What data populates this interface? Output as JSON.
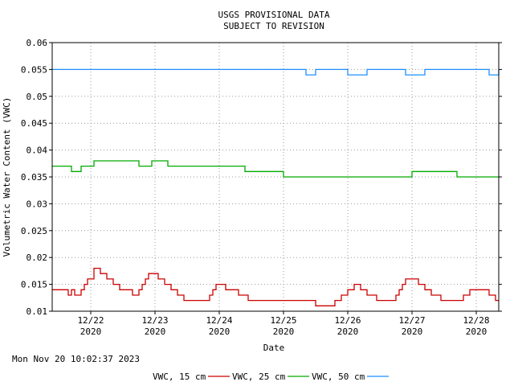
{
  "chart_data": {
    "type": "line",
    "title_line1": "USGS PROVISIONAL DATA",
    "title_line2": "SUBJECT TO REVISION",
    "xlabel": "Date",
    "ylabel": "Volumetric Water Content (VWC)",
    "timestamp": "Mon Nov 20 10:02:37 2023",
    "ylim": [
      0.01,
      0.06
    ],
    "y_ticks": [
      "0.01",
      "0.015",
      "0.02",
      "0.025",
      "0.03",
      "0.035",
      "0.04",
      "0.045",
      "0.05",
      "0.055",
      "0.06"
    ],
    "y_tick_values": [
      0.01,
      0.015,
      0.02,
      0.025,
      0.03,
      0.035,
      0.04,
      0.045,
      0.05,
      0.055,
      0.06
    ],
    "xlim": [
      21.4,
      28.35
    ],
    "x_ticks": [
      {
        "x": 22,
        "label1": "12/22",
        "label2": "2020"
      },
      {
        "x": 23,
        "label1": "12/23",
        "label2": "2020"
      },
      {
        "x": 24,
        "label1": "12/24",
        "label2": "2020"
      },
      {
        "x": 25,
        "label1": "12/25",
        "label2": "2020"
      },
      {
        "x": 26,
        "label1": "12/26",
        "label2": "2020"
      },
      {
        "x": 27,
        "label1": "12/27",
        "label2": "2020"
      },
      {
        "x": 28,
        "label1": "12/28",
        "label2": "2020"
      }
    ],
    "grid": true,
    "legend_position": "bottom",
    "series": [
      {
        "name": "VWC, 15 cm",
        "color": "#cc0000",
        "x": [
          21.4,
          21.5,
          21.6,
          21.65,
          21.7,
          21.75,
          21.8,
          21.85,
          21.9,
          21.95,
          22.05,
          22.1,
          22.15,
          22.25,
          22.35,
          22.45,
          22.55,
          22.65,
          22.75,
          22.8,
          22.85,
          22.9,
          22.95,
          23.05,
          23.15,
          23.25,
          23.35,
          23.45,
          23.55,
          23.85,
          23.9,
          23.95,
          24.1,
          24.2,
          24.3,
          24.45,
          24.75,
          25.0,
          25.25,
          25.5,
          25.7,
          25.8,
          25.9,
          26.0,
          26.1,
          26.2,
          26.3,
          26.45,
          26.75,
          26.8,
          26.85,
          26.9,
          26.95,
          27.1,
          27.2,
          27.3,
          27.45,
          27.6,
          27.8,
          27.9,
          28.1,
          28.2,
          28.3,
          28.35
        ],
        "values": [
          0.014,
          0.014,
          0.014,
          0.013,
          0.014,
          0.013,
          0.013,
          0.014,
          0.015,
          0.016,
          0.018,
          0.018,
          0.017,
          0.016,
          0.015,
          0.014,
          0.014,
          0.013,
          0.014,
          0.015,
          0.016,
          0.017,
          0.017,
          0.016,
          0.015,
          0.014,
          0.013,
          0.012,
          0.012,
          0.013,
          0.014,
          0.015,
          0.014,
          0.014,
          0.013,
          0.012,
          0.012,
          0.012,
          0.012,
          0.011,
          0.011,
          0.012,
          0.013,
          0.014,
          0.015,
          0.014,
          0.013,
          0.012,
          0.013,
          0.014,
          0.015,
          0.016,
          0.016,
          0.015,
          0.014,
          0.013,
          0.012,
          0.012,
          0.013,
          0.014,
          0.014,
          0.013,
          0.012,
          0.012
        ]
      },
      {
        "name": "VWC, 25 cm",
        "color": "#00aa00",
        "x": [
          21.4,
          21.7,
          21.85,
          21.95,
          22.05,
          22.55,
          22.75,
          22.95,
          23.2,
          23.45,
          23.95,
          24.1,
          24.4,
          24.55,
          24.9,
          25.0,
          25.4,
          25.7,
          26.2,
          26.5,
          26.9,
          27.0,
          27.3,
          27.5,
          27.7,
          28.0,
          28.35
        ],
        "values": [
          0.037,
          0.036,
          0.037,
          0.037,
          0.038,
          0.038,
          0.037,
          0.038,
          0.037,
          0.037,
          0.037,
          0.037,
          0.036,
          0.036,
          0.036,
          0.035,
          0.035,
          0.035,
          0.035,
          0.035,
          0.035,
          0.036,
          0.036,
          0.036,
          0.035,
          0.035,
          0.035
        ]
      },
      {
        "name": "VWC, 50 cm",
        "color": "#1e90ff",
        "x": [
          21.4,
          21.8,
          22.7,
          23.0,
          23.7,
          24.0,
          24.85,
          25.35,
          25.5,
          25.7,
          26.0,
          26.3,
          26.6,
          26.9,
          27.2,
          27.6,
          27.9,
          28.2,
          28.35
        ],
        "values": [
          0.055,
          0.055,
          0.055,
          0.055,
          0.055,
          0.055,
          0.055,
          0.054,
          0.055,
          0.055,
          0.054,
          0.055,
          0.055,
          0.054,
          0.055,
          0.055,
          0.055,
          0.054,
          0.055
        ]
      }
    ]
  }
}
